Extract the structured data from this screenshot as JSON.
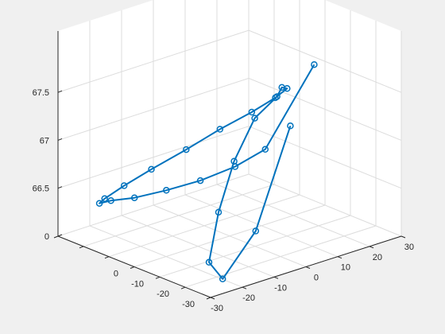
{
  "chart_data": {
    "type": "line",
    "projection": "3d",
    "grid": true,
    "marker": "circle",
    "series_color": "#0072bd",
    "axes_color": "#262626",
    "grid_color": "#dcdcdc",
    "pane_color": "#ffffff",
    "figure_background": "#f0f0f0",
    "xlim": [
      -30,
      30
    ],
    "ylim": [
      -30,
      30
    ],
    "zlim": [
      66,
      67.7
    ],
    "x_ticks": [
      "-30",
      "-20",
      "-10",
      "0",
      "10",
      "20",
      "30"
    ],
    "y_ticks": [
      "-30",
      "-20",
      "-10",
      "0",
      "10",
      "20",
      "30"
    ],
    "z_ticks": [
      "0",
      "66.5",
      "67",
      "67.5"
    ],
    "points": [
      {
        "x": -32.0,
        "y": -6.5,
        "z": 67.56
      },
      {
        "x": -32.0,
        "y": -17.4,
        "z": 66.58
      },
      {
        "x": -32.0,
        "y": -27.8,
        "z": 66.19
      },
      {
        "x": -32.0,
        "y": -32.1,
        "z": 66.41
      },
      {
        "x": -32.0,
        "y": -29.1,
        "z": 66.9
      },
      {
        "x": -32.0,
        "y": -24.2,
        "z": 67.38
      },
      {
        "x": -32.0,
        "y": -17.7,
        "z": 67.76
      },
      {
        "x": -32.0,
        "y": -10.7,
        "z": 67.91
      },
      {
        "x": -29.9,
        "y": -7.5,
        "z": 67.95
      },
      {
        "x": -24.1,
        "y": -1.2,
        "z": 67.81
      },
      {
        "x": -15.1,
        "y": 2.3,
        "z": 67.58
      },
      {
        "x": -4.2,
        "y": 3.6,
        "z": 67.3
      },
      {
        "x": 6.7,
        "y": 2.3,
        "z": 67.02
      },
      {
        "x": 15.6,
        "y": -1.2,
        "z": 66.75
      },
      {
        "x": 21.4,
        "y": -7.5,
        "z": 66.55
      },
      {
        "x": 23.5,
        "y": -14.4,
        "z": 66.43
      },
      {
        "x": 21.4,
        "y": -22.2,
        "z": 66.4
      },
      {
        "x": 15.6,
        "y": -28.5,
        "z": 66.48
      },
      {
        "x": 6.7,
        "y": -32.0,
        "z": 66.64
      },
      {
        "x": -4.2,
        "y": -33.3,
        "z": 66.8
      },
      {
        "x": -15.1,
        "y": -32.0,
        "z": 66.98
      },
      {
        "x": -24.1,
        "y": -28.5,
        "z": 67.14
      },
      {
        "x": -29.9,
        "y": -22.2,
        "z": 67.28
      },
      {
        "x": -32.0,
        "y": -14.4,
        "z": 67.4
      },
      {
        "x": -32.0,
        "y": 1.0,
        "z": 68.12
      }
    ]
  }
}
